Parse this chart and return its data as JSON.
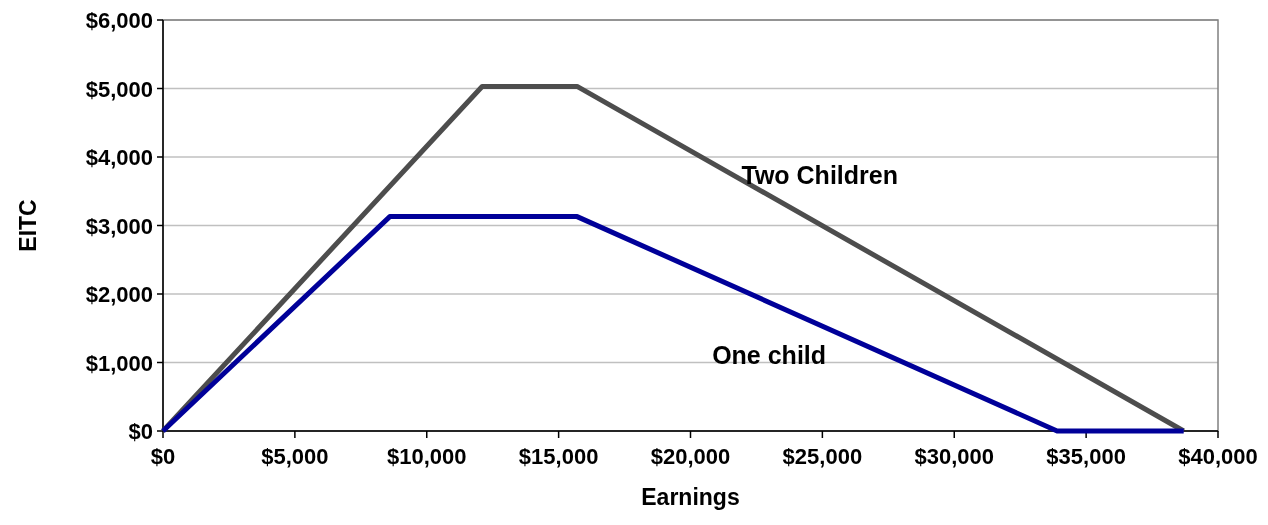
{
  "chart_data": {
    "type": "line",
    "xlabel": "Earnings",
    "ylabel": "EITC",
    "xlim": [
      0,
      40000
    ],
    "xticks": [
      {
        "value": 0,
        "label": "$0"
      },
      {
        "value": 5000,
        "label": "$5,000"
      },
      {
        "value": 10000,
        "label": "$10,000"
      },
      {
        "value": 15000,
        "label": "$15,000"
      },
      {
        "value": 20000,
        "label": "$20,000"
      },
      {
        "value": 25000,
        "label": "$25,000"
      },
      {
        "value": 30000,
        "label": "$30,000"
      },
      {
        "value": 35000,
        "label": "$35,000"
      },
      {
        "value": 40000,
        "label": "$40,000"
      }
    ],
    "ylim": [
      0,
      6000
    ],
    "yticks": [
      {
        "value": 0,
        "label": "$0"
      },
      {
        "value": 1000,
        "label": "$1,000"
      },
      {
        "value": 2000,
        "label": "$2,000"
      },
      {
        "value": 3000,
        "label": "$3,000"
      },
      {
        "value": 4000,
        "label": "$4,000"
      },
      {
        "value": 5000,
        "label": "$5,000"
      },
      {
        "value": 6000,
        "label": "$6,000"
      }
    ],
    "grid": "y",
    "marker": "none",
    "line_style": "solid",
    "series": [
      {
        "name": "Two Children",
        "color": "#4d4d4d",
        "x": [
          0,
          12100,
          15700,
          38700
        ],
        "values": [
          0,
          5030,
          5030,
          0
        ]
      },
      {
        "name": "One child",
        "color": "#000099",
        "x": [
          0,
          8600,
          15700,
          33900,
          38700
        ],
        "values": [
          0,
          3130,
          3130,
          0,
          0
        ]
      }
    ]
  }
}
